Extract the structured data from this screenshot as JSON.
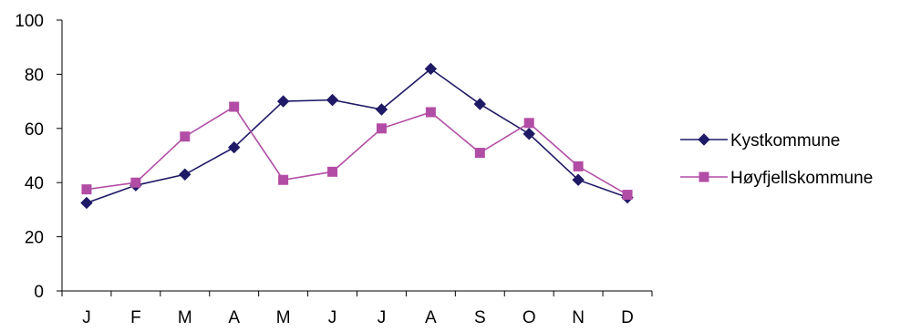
{
  "chart_data": {
    "type": "line",
    "title": "",
    "xlabel": "",
    "ylabel": "",
    "categories": [
      "J",
      "F",
      "M",
      "A",
      "M",
      "J",
      "J",
      "A",
      "S",
      "O",
      "N",
      "D"
    ],
    "ylim": [
      0,
      100
    ],
    "yticks": [
      0,
      20,
      40,
      60,
      80,
      100
    ],
    "grid": false,
    "legend_position": "right",
    "series": [
      {
        "name": "Kystkommune",
        "color": "#1f1a66",
        "marker": "diamond",
        "values": [
          32.5,
          39,
          43,
          53,
          70,
          70.5,
          67,
          82,
          69,
          58,
          41,
          34.5
        ]
      },
      {
        "name": "Høyfjellskommune",
        "color": "#b24da5",
        "marker": "square",
        "values": [
          37.5,
          40,
          57,
          68,
          41,
          44,
          60,
          66,
          51,
          62,
          46,
          35.5
        ]
      }
    ]
  }
}
